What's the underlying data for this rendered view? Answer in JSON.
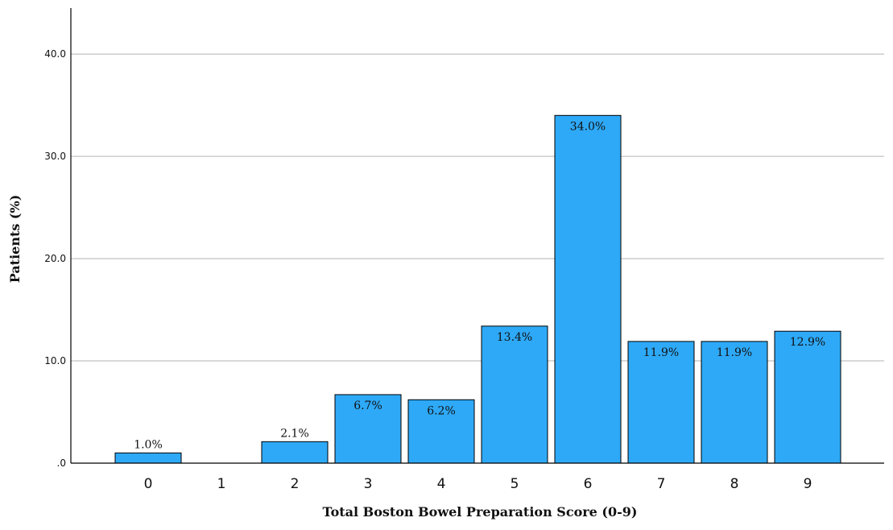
{
  "chart_data": {
    "type": "bar",
    "title": "",
    "xlabel": "Total Boston Bowel Preparation Score (0-9)",
    "ylabel": "Patients (%)",
    "categories": [
      "0",
      "1",
      "2",
      "3",
      "4",
      "5",
      "6",
      "7",
      "8",
      "9"
    ],
    "values": [
      1.0,
      0.0,
      2.1,
      6.7,
      6.2,
      13.4,
      34.0,
      11.9,
      11.9,
      12.9
    ],
    "data_labels": [
      "1.0%",
      "",
      "2.1%",
      "6.7%",
      "6.2%",
      "13.4%",
      "34.0%",
      "11.9%",
      "11.9%",
      "12.9%"
    ],
    "y_ticks": [
      0,
      10,
      20,
      30,
      40
    ],
    "y_tick_labels": [
      ".0",
      "10.0",
      "20.0",
      "30.0",
      "40.0"
    ],
    "ylim": [
      0,
      44.5
    ],
    "grid": true,
    "legend": "none",
    "bar_color": "#2ea9f7",
    "bar_edge_color": "#000000",
    "grid_color": "#b3b3b3"
  }
}
